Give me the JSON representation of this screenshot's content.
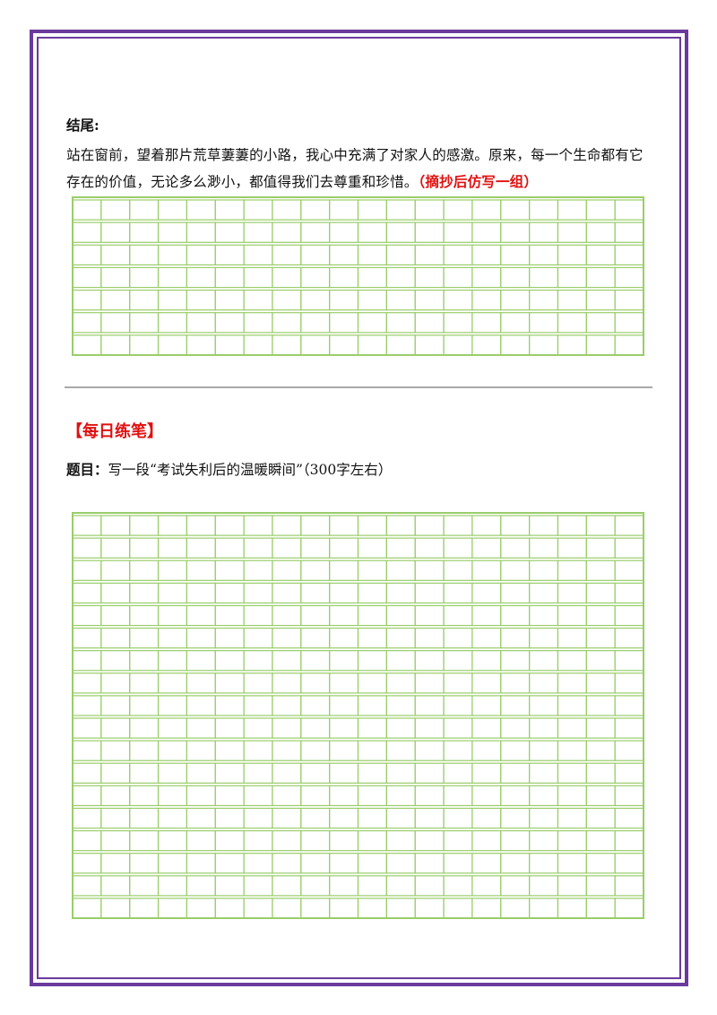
{
  "ending": {
    "label": "结尾:",
    "text": "站在窗前，望着那片荒草萋萋的小路，我心中充满了对家人的感激。原来，每一个生命都有它存在的价值，无论多么渺小，都值得我们去尊重和珍惜。",
    "instruction": "（摘抄后仿写一组）"
  },
  "practice": {
    "heading": "【每日练笔】",
    "topic_label": "题目：",
    "topic": "写一段“考试失利后的温暖瞬间”（300字左右）"
  }
}
